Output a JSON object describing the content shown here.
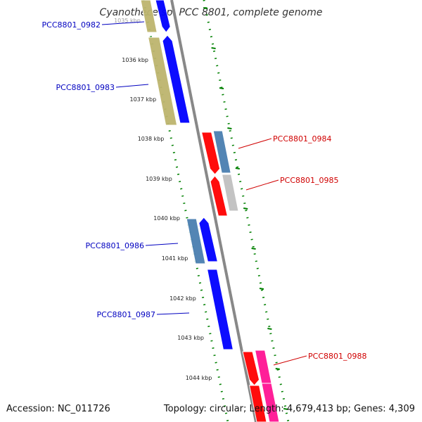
{
  "title": "Cyanothece sp. PCC 8801, complete genome",
  "footer": {
    "accession": "Accession: NC_011726",
    "summary": "Topology: circular; Length: 4,679,413 bp; Genes: 4,309"
  },
  "colors": {
    "blue": "#0000ff",
    "steel": "#4a7fb0",
    "olive": "#bdb56e",
    "red": "#ff0000",
    "gray": "#c0c0c0",
    "magenta": "#ff1493",
    "label_left": "#0000c0",
    "label_right": "#d00000",
    "dots": "#008000",
    "axis": "#888888"
  },
  "ticks": [
    {
      "label": "1035 kbp"
    },
    {
      "label": "1036 kbp"
    },
    {
      "label": "1037 kbp"
    },
    {
      "label": "1038 kbp"
    },
    {
      "label": "1039 kbp"
    },
    {
      "label": "1040 kbp"
    },
    {
      "label": "1041 kbp"
    },
    {
      "label": "1042 kbp"
    },
    {
      "label": "1043 kbp"
    },
    {
      "label": "1044 kbp"
    }
  ],
  "gene_labels": [
    {
      "name": "PCC8801_0982",
      "side": "left"
    },
    {
      "name": "PCC8801_0983",
      "side": "left"
    },
    {
      "name": "PCC8801_0984",
      "side": "right"
    },
    {
      "name": "PCC8801_0985",
      "side": "right"
    },
    {
      "name": "PCC8801_0986",
      "side": "left"
    },
    {
      "name": "PCC8801_0987",
      "side": "left"
    },
    {
      "name": "PCC8801_0988",
      "side": "right"
    }
  ]
}
